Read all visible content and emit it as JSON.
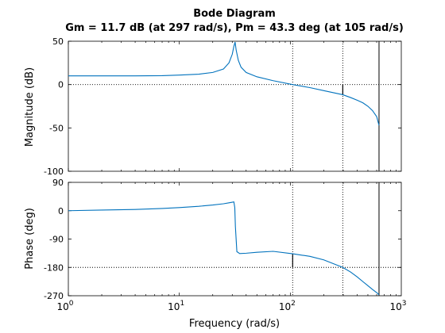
{
  "figure": {
    "title": "Bode Diagram",
    "subtitle": "Gm = 11.7 dB (at 297 rad/s),  Pm = 43.3 deg (at 105 rad/s)",
    "xlabel": "Frequency  (rad/s)",
    "colors": {
      "curve": "#0072bd",
      "axes": "#000000",
      "background": "#ffffff"
    }
  },
  "chart_data": [
    {
      "type": "line",
      "panel": "magnitude",
      "ylabel": "Magnitude (dB)",
      "xscale": "log",
      "xlim": [
        1,
        1000
      ],
      "ylim": [
        -100,
        50
      ],
      "yticks": [
        -100,
        -50,
        0,
        50
      ],
      "ytick_labels": [
        "-100",
        "-50",
        "0",
        "50"
      ],
      "x": [
        1,
        2,
        4,
        7,
        10,
        15,
        20,
        25,
        28,
        30,
        31,
        31.8,
        32.5,
        34,
        36,
        40,
        50,
        70,
        105,
        150,
        200,
        297,
        350,
        400,
        450,
        500,
        550,
        600,
        630
      ],
      "y": [
        10,
        10,
        10,
        10.3,
        11,
        12,
        14,
        18,
        25,
        35,
        44,
        49,
        40,
        28,
        20,
        14,
        9,
        4.5,
        0,
        -3.5,
        -7,
        -11.7,
        -15,
        -18,
        -21,
        -25,
        -30,
        -37,
        -47
      ],
      "reference_lines": [
        {
          "axis": "y",
          "value": 0,
          "style": "dotted"
        }
      ],
      "markers": [
        {
          "x": 105,
          "style": "dotted"
        },
        {
          "x": 297,
          "style": "dotted",
          "marker_from": 0,
          "marker_to": -11.7
        }
      ]
    },
    {
      "type": "line",
      "panel": "phase",
      "ylabel": "Phase (deg)",
      "xscale": "log",
      "xlim": [
        1,
        1000
      ],
      "ylim": [
        -270,
        90
      ],
      "yticks": [
        -270,
        -180,
        -90,
        0,
        90
      ],
      "ytick_labels": [
        "-270",
        "-180",
        "-90",
        "0",
        "90"
      ],
      "xticks": [
        1,
        10,
        100,
        1000
      ],
      "xtick_labels": [
        {
          "base": "10",
          "exp": "0"
        },
        {
          "base": "10",
          "exp": "1"
        },
        {
          "base": "10",
          "exp": "2"
        },
        {
          "base": "10",
          "exp": "3"
        }
      ],
      "x": [
        1,
        2,
        4,
        7,
        10,
        15,
        20,
        25,
        28,
        30,
        31,
        31.6,
        32,
        33,
        35,
        40,
        50,
        70,
        105,
        150,
        200,
        297,
        350,
        400,
        450,
        500,
        550,
        600,
        630
      ],
      "y": [
        0,
        2,
        4,
        7,
        10,
        14,
        18,
        22,
        25,
        27,
        28,
        10,
        -50,
        -130,
        -136,
        -135,
        -132,
        -129,
        -136.7,
        -145,
        -156,
        -180,
        -195,
        -210,
        -225,
        -238,
        -250,
        -260,
        -267
      ],
      "reference_lines": [
        {
          "axis": "y",
          "value": -180,
          "style": "dotted"
        }
      ],
      "markers": [
        {
          "x": 105,
          "style": "dotted",
          "marker_from": -136.7,
          "marker_to": -180
        },
        {
          "x": 297,
          "style": "dotted"
        }
      ]
    }
  ]
}
